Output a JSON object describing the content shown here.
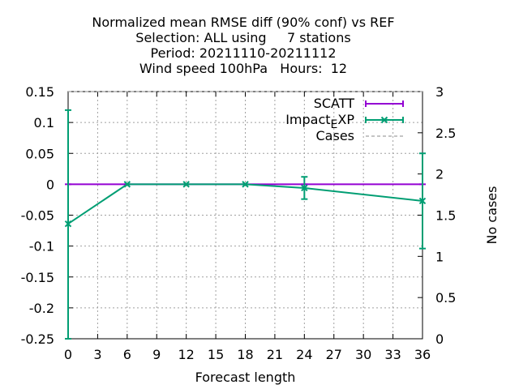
{
  "chart_data": {
    "type": "line",
    "title_lines": [
      "Normalized mean RMSE diff (90% conf) vs REF",
      "Selection: ALL using     7 stations",
      "Period: 20211110-20211112",
      "Wind speed 100hPa   Hours:  12"
    ],
    "xlabel": "Forecast length",
    "y2label": "No cases",
    "xlim": [
      0,
      36
    ],
    "ylim": [
      -0.25,
      0.15
    ],
    "y2lim": [
      0,
      3
    ],
    "xticks": [
      0,
      3,
      6,
      9,
      12,
      15,
      18,
      21,
      24,
      27,
      30,
      33,
      36
    ],
    "yticks": [
      0.15,
      0.1,
      0.05,
      0,
      -0.05,
      -0.1,
      -0.15,
      -0.2,
      -0.25
    ],
    "yticklabels": [
      "0.15",
      "0.1",
      "0.05",
      "0",
      "-0.05",
      "-0.1",
      "-0.15",
      "-0.2",
      "-0.25"
    ],
    "y2ticks": [
      3,
      2.5,
      2,
      1.5,
      1,
      0.5,
      0
    ],
    "y2ticklabels": [
      "3",
      "2.5",
      "2",
      "1.5",
      "1",
      "0.5",
      "0"
    ],
    "grid": true,
    "legend_position": "top-right",
    "series": [
      {
        "name": "SCATT",
        "color": "#9400d3",
        "x": [
          0,
          6,
          12,
          18,
          24,
          36
        ],
        "y": [
          0,
          0,
          0,
          0,
          0,
          0
        ]
      },
      {
        "name": "Impact_EXP",
        "legend_main": "Impact",
        "legend_sub": "E",
        "legend_tail": "XP",
        "color": "#009e73",
        "x": [
          0,
          6,
          12,
          18,
          24,
          36
        ],
        "y": [
          -0.064,
          0,
          0,
          0,
          -0.006,
          -0.027
        ],
        "err_low": [
          -0.25,
          0,
          0,
          0,
          -0.024,
          -0.104
        ],
        "err_high": [
          0.12,
          0,
          0,
          0,
          0.012,
          0.05
        ]
      },
      {
        "name": "Cases",
        "color": "#a0a0a0",
        "x": [
          0,
          6,
          12,
          18,
          24,
          36
        ],
        "y": [
          3,
          3,
          3,
          3,
          3,
          3
        ]
      }
    ]
  }
}
